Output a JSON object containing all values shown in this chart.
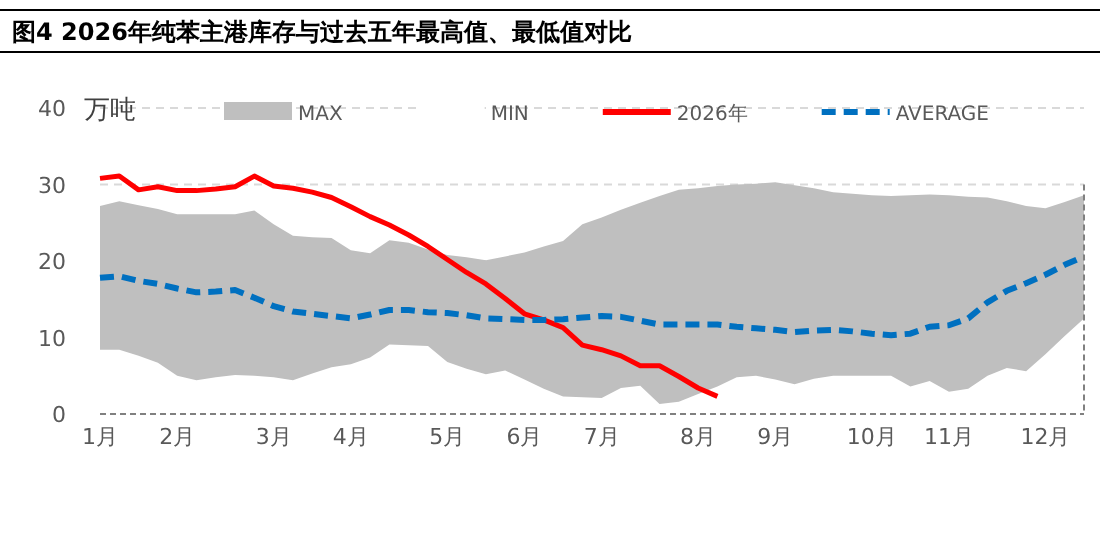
{
  "chart_data": {
    "type": "area",
    "title": "图4 2026年纯苯主港库存与过去五年最高值、最低值对比",
    "ylabel": "万吨",
    "categories": [
      "1月",
      null,
      null,
      null,
      "2月",
      null,
      null,
      null,
      null,
      "3月",
      null,
      null,
      null,
      "4月",
      null,
      null,
      null,
      null,
      "5月",
      null,
      null,
      null,
      "6月",
      null,
      null,
      null,
      "7月",
      null,
      null,
      null,
      null,
      "8月",
      null,
      null,
      null,
      "9月",
      null,
      null,
      null,
      null,
      "10月",
      null,
      null,
      null,
      "11月",
      null,
      null,
      null,
      null,
      "12月",
      null,
      null
    ],
    "ylim": [
      0,
      40
    ],
    "yticks": [
      0,
      10,
      20,
      30,
      40
    ],
    "grid": "y",
    "legend": "top",
    "series": [
      {
        "name": "MAX",
        "color": "#bfbfbf",
        "values": [
          27.2,
          27.8,
          27.3,
          26.8,
          26.1,
          26.1,
          26.1,
          26.1,
          26.6,
          24.8,
          23.3,
          23.1,
          23,
          21.4,
          21,
          22.7,
          22.4,
          21.5,
          20.8,
          20.5,
          20.1,
          20.6,
          21.1,
          21.9,
          22.6,
          24.8,
          25.7,
          26.7,
          27.6,
          28.5,
          29.3,
          29.5,
          29.8,
          30,
          30.1,
          30.3,
          29.9,
          29.5,
          29,
          28.8,
          28.6,
          28.5,
          28.6,
          28.7,
          28.6,
          28.4,
          28.3,
          27.8,
          27.2,
          26.9,
          27.7,
          28.6
        ]
      },
      {
        "name": "MIN",
        "color": "#ffffff",
        "values": [
          8.4,
          8.4,
          7.6,
          6.7,
          5,
          4.4,
          4.8,
          5.1,
          5,
          4.8,
          4.4,
          5.3,
          6.1,
          6.5,
          7.4,
          9.1,
          9,
          8.9,
          6.8,
          5.9,
          5.2,
          5.7,
          4.5,
          3.3,
          2.3,
          2.2,
          2.1,
          3.4,
          3.7,
          1.3,
          1.6,
          2.6,
          3.6,
          4.8,
          5,
          4.5,
          3.9,
          4.6,
          5,
          5,
          5,
          5,
          3.6,
          4.3,
          2.9,
          3.3,
          5,
          6,
          5.6,
          7.8,
          10.2,
          12.5
        ]
      },
      {
        "name": "2026年",
        "type": "line",
        "color": "#ff0000",
        "line_style": "solid",
        "values": [
          30.8,
          31.1,
          29.3,
          29.7,
          29.2,
          29.2,
          29.4,
          29.7,
          31.1,
          29.8,
          29.5,
          29,
          28.3,
          27.1,
          25.8,
          24.7,
          23.4,
          21.9,
          20.2,
          18.5,
          17,
          15.1,
          13.1,
          12.3,
          11.3,
          9,
          8.4,
          7.6,
          6.3,
          6.3,
          4.9,
          3.4,
          2.3,
          null,
          null,
          null,
          null,
          null,
          null,
          null,
          null,
          null,
          null,
          null,
          null,
          null,
          null,
          null,
          null,
          null,
          null,
          null
        ]
      },
      {
        "name": "AVERAGE",
        "type": "line",
        "color": "#0070c0",
        "line_style": "dashed",
        "values": [
          17.8,
          18,
          17.4,
          17,
          16.4,
          15.9,
          16,
          16.2,
          15.2,
          14.1,
          13.4,
          13.1,
          12.8,
          12.5,
          13,
          13.6,
          13.6,
          13.3,
          13.2,
          12.9,
          12.5,
          12.4,
          12.3,
          12.3,
          12.4,
          12.6,
          12.8,
          12.7,
          12.2,
          11.7,
          11.7,
          11.7,
          11.7,
          11.4,
          11.2,
          11,
          10.7,
          10.9,
          11,
          10.8,
          10.5,
          10.3,
          10.5,
          11.4,
          11.6,
          12.5,
          14.6,
          16.1,
          17.1,
          18.2,
          19.5,
          20.6
        ]
      }
    ]
  }
}
